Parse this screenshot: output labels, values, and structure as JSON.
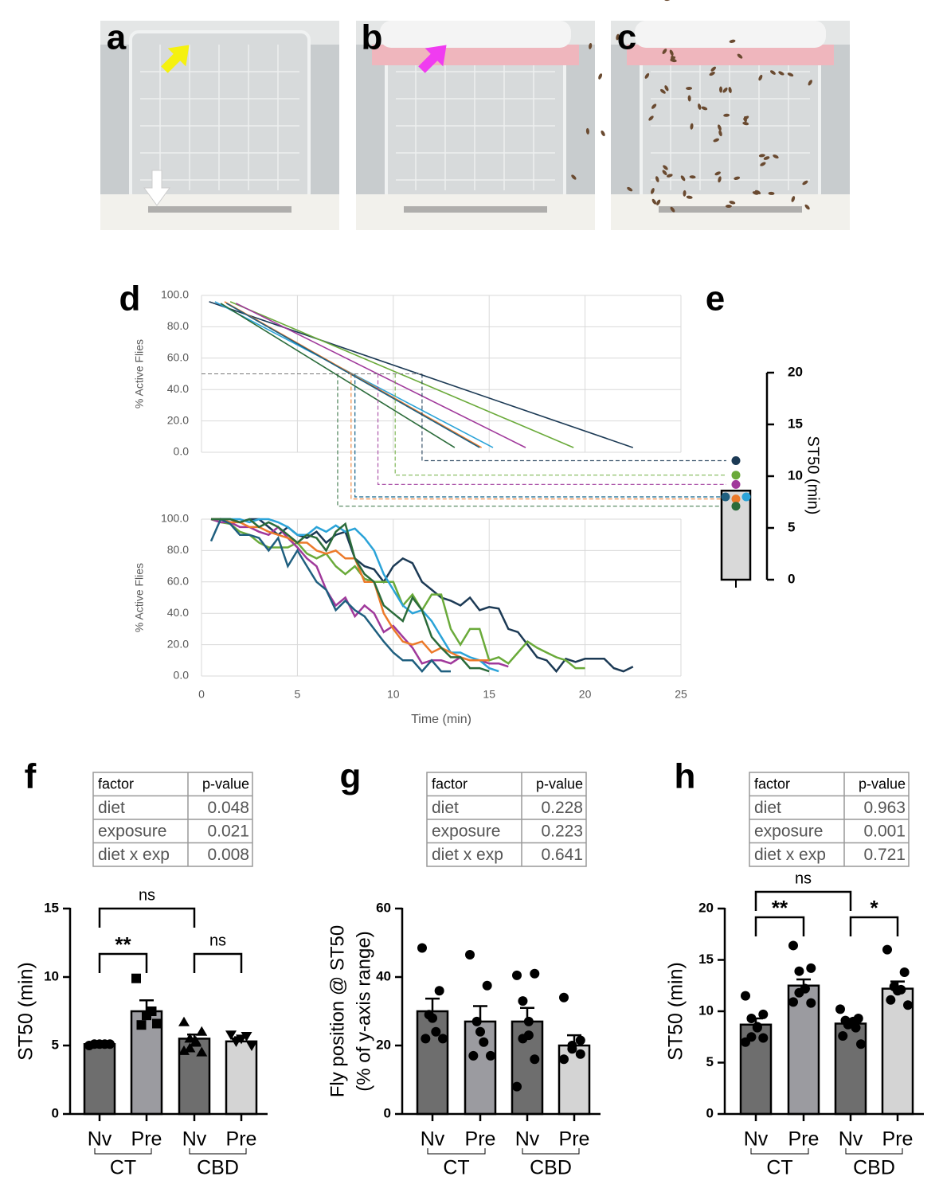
{
  "photos": [
    {
      "label": "a"
    },
    {
      "label": "b"
    },
    {
      "label": "c"
    }
  ],
  "chart_data": [
    {
      "type": "line",
      "panel_label": "d",
      "ylabel": "% Active Flies",
      "xlim": [
        0,
        25
      ],
      "ylim": [
        0,
        100
      ],
      "xticks": [
        0,
        5,
        10,
        15,
        20,
        25
      ],
      "yticks": [
        {
          "value": 0,
          "label": "0.0"
        },
        {
          "value": 20,
          "label": "20.0"
        },
        {
          "value": 40,
          "label": "40.0"
        },
        {
          "value": 60,
          "label": "60.0"
        },
        {
          "value": 80,
          "label": "80.0"
        },
        {
          "value": 100,
          "label": "100.0"
        }
      ],
      "grid": true,
      "series": [
        {
          "color": "#1c3a55",
          "x": [
            0.4,
            22.5
          ],
          "values": [
            96,
            3
          ]
        },
        {
          "color": "#6aaa3a",
          "x": [
            1.5,
            19.4
          ],
          "values": [
            96,
            3
          ]
        },
        {
          "color": "#a0399b",
          "x": [
            1.8,
            16.9
          ],
          "values": [
            95,
            3
          ]
        },
        {
          "color": "#2ba3d8",
          "x": [
            0.7,
            15.2
          ],
          "values": [
            96,
            3
          ]
        },
        {
          "color": "#ec7a2a",
          "x": [
            1.2,
            14.6
          ],
          "values": [
            96,
            3
          ]
        },
        {
          "color": "#1f5f7f",
          "x": [
            1.3,
            14.5
          ],
          "values": [
            95,
            3
          ]
        },
        {
          "color": "#2b6b3a",
          "x": [
            1.0,
            13.2
          ],
          "values": [
            95,
            3
          ]
        }
      ]
    },
    {
      "type": "line",
      "xlabel": "Time (min)",
      "ylabel": "% Active Flies",
      "xlim": [
        0,
        25
      ],
      "ylim": [
        0,
        100
      ],
      "xticks": [
        0,
        5,
        10,
        15,
        20,
        25
      ],
      "yticks": [
        {
          "value": 0,
          "label": "0.0"
        },
        {
          "value": 20,
          "label": "20.0"
        },
        {
          "value": 40,
          "label": "40.0"
        },
        {
          "value": 60,
          "label": "60.0"
        },
        {
          "value": 80,
          "label": "80.0"
        },
        {
          "value": 100,
          "label": "100.0"
        }
      ],
      "grid": true,
      "x": [
        0.5,
        1,
        1.5,
        2,
        2.5,
        3,
        3.5,
        4,
        4.5,
        5,
        5.5,
        6,
        6.5,
        7,
        7.5,
        8,
        8.5,
        9,
        9.5,
        10,
        10.5,
        11,
        11.5,
        12,
        12.5,
        13,
        13.5,
        14,
        14.5,
        15,
        15.5,
        16,
        16.5,
        17,
        17.5,
        18,
        18.5,
        19,
        19.5,
        20,
        20.5,
        21,
        21.5,
        22,
        22.5
      ],
      "series": [
        {
          "color": "#1c3a55",
          "values": [
            100,
            100,
            100,
            98,
            100,
            100,
            95,
            90,
            95,
            90,
            88,
            92,
            85,
            90,
            92,
            75,
            70,
            68,
            60,
            70,
            75,
            72,
            60,
            55,
            50,
            48,
            45,
            50,
            42,
            44,
            43,
            30,
            28,
            20,
            12,
            10,
            3,
            11,
            9,
            11,
            11,
            11,
            5,
            3,
            6
          ]
        },
        {
          "color": "#6aaa3a",
          "values": [
            100,
            98,
            97,
            92,
            90,
            85,
            82,
            82,
            82,
            85,
            78,
            75,
            78,
            70,
            65,
            70,
            62,
            60,
            60,
            60,
            45,
            52,
            42,
            52,
            52,
            30,
            20,
            30,
            30,
            10,
            12,
            8,
            15,
            22,
            18,
            15,
            12,
            10,
            5,
            5,
            null,
            null,
            null,
            null,
            null
          ]
        },
        {
          "color": "#a0399b",
          "values": [
            100,
            98,
            98,
            95,
            95,
            92,
            90,
            95,
            88,
            82,
            75,
            70,
            55,
            45,
            50,
            38,
            45,
            40,
            28,
            32,
            25,
            18,
            8,
            10,
            10,
            8,
            12,
            10,
            10,
            8,
            8,
            6,
            null,
            null,
            null,
            null,
            null,
            null,
            null,
            null,
            null,
            null,
            null,
            null,
            null
          ]
        },
        {
          "color": "#2ba3d8",
          "values": [
            100,
            100,
            100,
            100,
            98,
            100,
            100,
            98,
            95,
            90,
            90,
            95,
            92,
            96,
            92,
            94,
            88,
            80,
            65,
            55,
            45,
            40,
            42,
            35,
            25,
            15,
            15,
            12,
            10,
            5,
            3,
            null,
            null,
            null,
            null,
            null,
            null,
            null,
            null,
            null,
            null,
            null,
            null,
            null,
            null
          ]
        },
        {
          "color": "#ec7a2a",
          "values": [
            100,
            100,
            98,
            98,
            95,
            95,
            92,
            90,
            88,
            85,
            85,
            80,
            78,
            80,
            75,
            75,
            60,
            60,
            40,
            30,
            22,
            20,
            22,
            15,
            18,
            15,
            12,
            10,
            10,
            10,
            null,
            null,
            null,
            null,
            null,
            null,
            null,
            null,
            null,
            null,
            null,
            null,
            null,
            null,
            null
          ]
        },
        {
          "color": "#1f5f7f",
          "values": [
            86,
            100,
            97,
            90,
            90,
            88,
            80,
            88,
            70,
            80,
            70,
            60,
            55,
            42,
            48,
            42,
            38,
            30,
            22,
            15,
            10,
            10,
            3,
            10,
            3,
            3,
            null,
            null,
            null,
            null,
            null,
            null,
            null,
            null,
            null,
            null,
            null,
            null,
            null,
            null,
            null,
            null,
            null,
            null,
            null
          ]
        },
        {
          "color": "#2b6b3a",
          "values": [
            100,
            100,
            100,
            98,
            100,
            95,
            98,
            95,
            90,
            85,
            90,
            88,
            80,
            92,
            97,
            75,
            65,
            60,
            45,
            40,
            35,
            50,
            42,
            25,
            18,
            12,
            12,
            5,
            5,
            3,
            null,
            null,
            null,
            null,
            null,
            null,
            null,
            null,
            null,
            null,
            null,
            null,
            null,
            null,
            null
          ]
        }
      ]
    },
    {
      "type": "stripbar",
      "panel_label": "e",
      "ylabel": "ST50 (min)",
      "ylim": [
        0,
        20
      ],
      "yticks": [
        0,
        5,
        10,
        15,
        20
      ],
      "values": [
        8.6
      ],
      "color": "#d9d9d9",
      "points": [
        11.5,
        10.1,
        9.2,
        8.0,
        7.8,
        8.0,
        7.1
      ],
      "point_colors": [
        "#1c3a55",
        "#6aaa3a",
        "#a0399b",
        "#2ba3d8",
        "#ec7a2a",
        "#1f5f7f",
        "#2b6b3a"
      ]
    },
    {
      "type": "bar",
      "panel_label": "f",
      "ylabel": "ST50 (min)",
      "ylim": [
        0,
        15
      ],
      "yticks": [
        0,
        5,
        10,
        15
      ],
      "stats_table": {
        "header": [
          "factor",
          "p-value"
        ],
        "rows": [
          [
            "diet",
            "0.048"
          ],
          [
            "exposure",
            "0.021"
          ],
          [
            "diet x exp",
            "0.008"
          ]
        ]
      },
      "categories": [
        "Nv",
        "Pre",
        "Nv",
        "Pre"
      ],
      "groups": [
        "CT",
        "CBD"
      ],
      "values": [
        5.1,
        7.5,
        5.5,
        5.3
      ],
      "errors": [
        0.05,
        0.8,
        0.3,
        0.3
      ],
      "colors": [
        "#6e6e6e",
        "#9b9ba0",
        "#6e6e6e",
        "#d4d4d4"
      ],
      "markers": [
        "circle",
        "square",
        "triangle-up",
        "triangle-down"
      ],
      "points": [
        [
          5.0,
          5.1,
          5.1,
          5.1,
          5.1
        ],
        [
          9.9,
          7.5,
          7.2,
          6.5,
          6.6
        ],
        [
          6.7,
          6.0,
          5.5,
          5.3,
          5.2,
          4.8,
          4.5,
          4.6
        ],
        [
          5.8,
          5.7,
          5.5,
          5.3,
          5.0
        ]
      ],
      "annotations": [
        "**",
        "ns",
        "ns"
      ]
    },
    {
      "type": "bar",
      "panel_label": "g",
      "ylabel": [
        "Fly position @ ST50",
        "(% of y-axis range)"
      ],
      "ylim": [
        0,
        60
      ],
      "yticks": [
        0,
        20,
        40,
        60
      ],
      "stats_table": {
        "header": [
          "factor",
          "p-value"
        ],
        "rows": [
          [
            "diet",
            "0.228"
          ],
          [
            "exposure",
            "0.223"
          ],
          [
            "diet x exp",
            "0.641"
          ]
        ]
      },
      "categories": [
        "Nv",
        "Pre",
        "Nv",
        "Pre"
      ],
      "groups": [
        "CT",
        "CBD"
      ],
      "values": [
        30,
        27,
        27,
        20
      ],
      "errors": [
        3.7,
        4.5,
        4,
        3
      ],
      "colors": [
        "#6e6e6e",
        "#9b9ba0",
        "#6e6e6e",
        "#d4d4d4"
      ],
      "markers": [
        "circle",
        "circle",
        "circle",
        "circle"
      ],
      "points": [
        [
          48.5,
          36,
          29,
          28,
          24,
          22,
          22
        ],
        [
          46.5,
          37.5,
          27,
          24,
          21,
          17,
          17
        ],
        [
          40.5,
          41,
          33,
          27,
          23,
          22,
          16,
          8
        ],
        [
          34,
          21.5,
          20,
          19,
          17.5,
          16
        ]
      ],
      "annotations": []
    },
    {
      "type": "bar",
      "panel_label": "h",
      "ylabel": "ST50 (min)",
      "ylim": [
        0,
        20
      ],
      "yticks": [
        0,
        5,
        10,
        15,
        20
      ],
      "stats_table": {
        "header": [
          "factor",
          "p-value"
        ],
        "rows": [
          [
            "diet",
            "0.963"
          ],
          [
            "exposure",
            "0.001"
          ],
          [
            "diet x exp",
            "0.721"
          ]
        ]
      },
      "categories": [
        "Nv",
        "Pre",
        "Nv",
        "Pre"
      ],
      "groups": [
        "CT",
        "CBD"
      ],
      "values": [
        8.7,
        12.5,
        8.8,
        12.2
      ],
      "errors": [
        0.6,
        0.6,
        0.4,
        0.7
      ],
      "colors": [
        "#6e6e6e",
        "#9b9ba0",
        "#6e6e6e",
        "#d4d4d4"
      ],
      "markers": [
        "circle",
        "circle",
        "circle",
        "circle"
      ],
      "points": [
        [
          11.5,
          9.7,
          9.3,
          8.5,
          8.4,
          7.5,
          7.4,
          7.0
        ],
        [
          16.4,
          14.2,
          13.9,
          12.2,
          12.2,
          11.8,
          10.8,
          10.9
        ],
        [
          10.2,
          9.3,
          9.1,
          9.0,
          8.9,
          8.7,
          8.4,
          7.6,
          6.8
        ],
        [
          16.0,
          13.8,
          12.4,
          12.0,
          12.1,
          11.1,
          10.6
        ]
      ],
      "annotations": [
        "**",
        "ns",
        "*"
      ]
    }
  ]
}
